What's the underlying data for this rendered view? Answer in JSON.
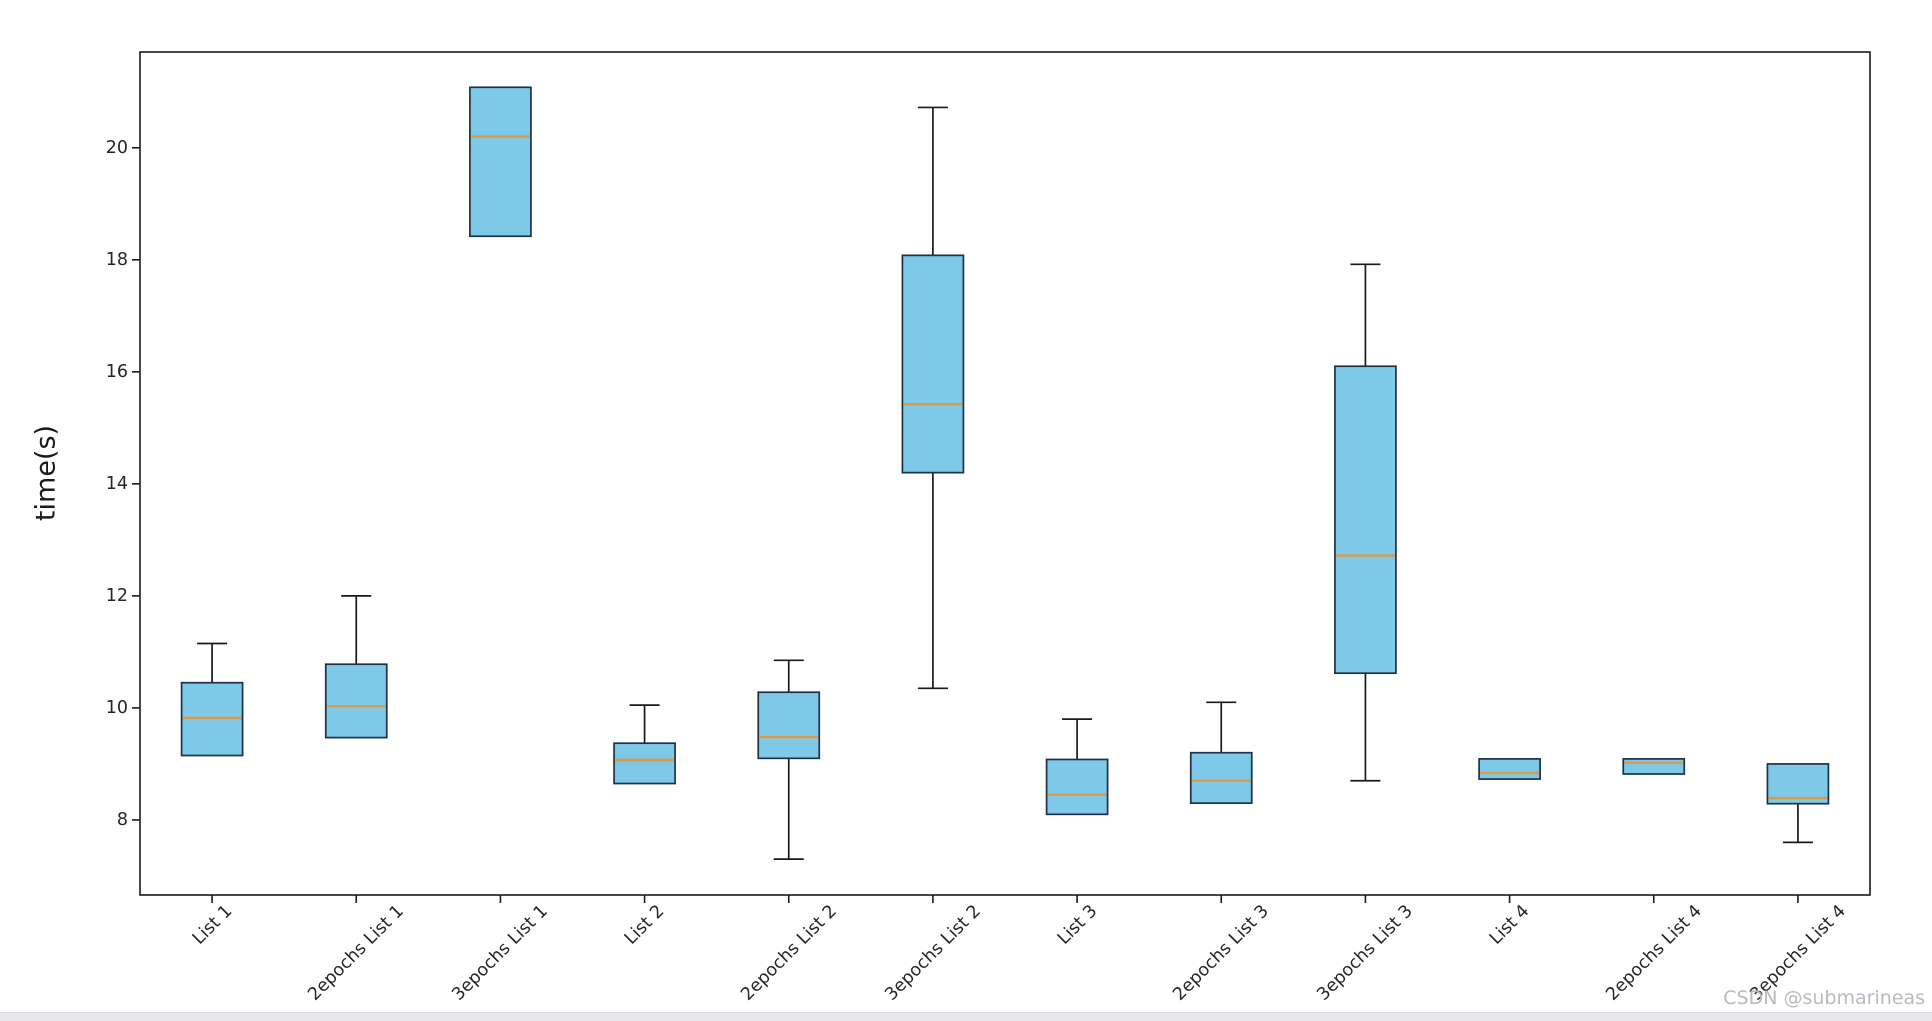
{
  "figure": {
    "watermark": "CSDN @submarineas"
  },
  "chart_data": {
    "type": "boxplot",
    "title": "",
    "xlabel": "",
    "ylabel": "time(s)",
    "yticks": [
      8,
      10,
      12,
      14,
      16,
      18,
      20
    ],
    "ylim": [
      6.66,
      21.71
    ],
    "grid": false,
    "legend": "none",
    "categories": [
      "List 1",
      "2epochs List 1",
      "3epochs List 1",
      "List 2",
      "2epochs List 2",
      "3epochs List 2",
      "List 3",
      "2epochs List 3",
      "3epochs List 3",
      "List 4",
      "2epochs List 4",
      "3epochs List 4"
    ],
    "series": [
      {
        "label": "List 1",
        "whislo": 9.15,
        "q1": 9.15,
        "med": 9.82,
        "q3": 10.45,
        "whishi": 11.15
      },
      {
        "label": "2epochs List 1",
        "whislo": 9.47,
        "q1": 9.47,
        "med": 10.03,
        "q3": 10.78,
        "whishi": 12.0
      },
      {
        "label": "3epochs List 1",
        "whislo": 18.42,
        "q1": 18.42,
        "med": 20.2,
        "q3": 21.08,
        "whishi": 21.08
      },
      {
        "label": "List 2",
        "whislo": 8.65,
        "q1": 8.65,
        "med": 9.07,
        "q3": 9.37,
        "whishi": 10.05
      },
      {
        "label": "2epochs List 2",
        "whislo": 7.3,
        "q1": 9.1,
        "med": 9.48,
        "q3": 10.28,
        "whishi": 10.85
      },
      {
        "label": "3epochs List 2",
        "whislo": 10.35,
        "q1": 14.2,
        "med": 15.42,
        "q3": 18.08,
        "whishi": 20.72
      },
      {
        "label": "List 3",
        "whislo": 8.1,
        "q1": 8.1,
        "med": 8.45,
        "q3": 9.08,
        "whishi": 9.8
      },
      {
        "label": "2epochs List 3",
        "whislo": 8.3,
        "q1": 8.3,
        "med": 8.7,
        "q3": 9.2,
        "whishi": 10.1
      },
      {
        "label": "3epochs List 3",
        "whislo": 8.7,
        "q1": 10.62,
        "med": 12.72,
        "q3": 16.1,
        "whishi": 17.92
      },
      {
        "label": "List 4",
        "whislo": 8.73,
        "q1": 8.73,
        "med": 8.84,
        "q3": 9.09,
        "whishi": 9.09
      },
      {
        "label": "2epochs List 4",
        "whislo": 8.82,
        "q1": 8.82,
        "med": 9.02,
        "q3": 9.09,
        "whishi": 9.09
      },
      {
        "label": "3epochs List 4",
        "whislo": 7.6,
        "q1": 8.29,
        "med": 8.39,
        "q3": 9.0,
        "whishi": 9.0
      }
    ],
    "colors": {
      "box_fill": "#7ec8e8",
      "box_edge": "#1d3147",
      "whisker": "#1a1a1a",
      "median": "#e0993e",
      "spine": "#1a1a1a",
      "watermark": "#b7bac2",
      "bottom_strip": "#e8e8eb"
    }
  }
}
